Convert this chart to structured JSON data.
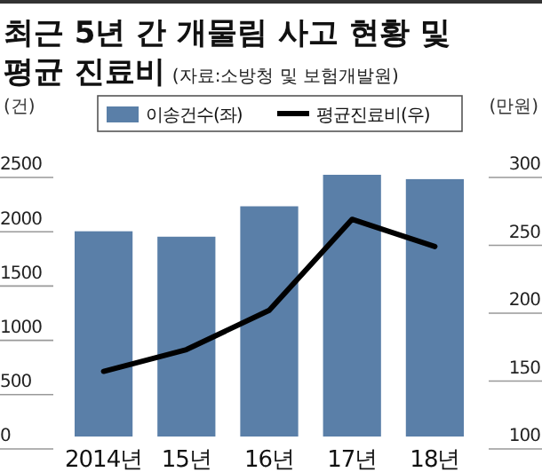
{
  "chart_data": {
    "type": "bar",
    "title": "최근 5년 간 개물림 사고 현황 및 평균 진료비",
    "subtitle": "(자료:소방청 및 보험개발원)",
    "ylabel": "(건)",
    "y2label": "(만원)",
    "categories": [
      "2014년",
      "15년",
      "16년",
      "17년",
      "18년"
    ],
    "series": [
      {
        "name": "이송건수(좌)",
        "color": "#5a7fa8",
        "values": [
          1890,
          1840,
          2120,
          2410,
          2370
        ]
      },
      {
        "name": "평균진료비(우)",
        "type": "line",
        "axis": "y2",
        "color": "#000000",
        "values": [
          148,
          164,
          193,
          260,
          240
        ]
      }
    ],
    "ylim": [
      0,
      2500
    ],
    "yticks": [
      0,
      500,
      1000,
      1500,
      2000,
      2500
    ],
    "y2lim": [
      100,
      300
    ],
    "y2ticks": [
      100,
      150,
      200,
      250,
      300
    ],
    "legend": "top",
    "grid": false
  }
}
